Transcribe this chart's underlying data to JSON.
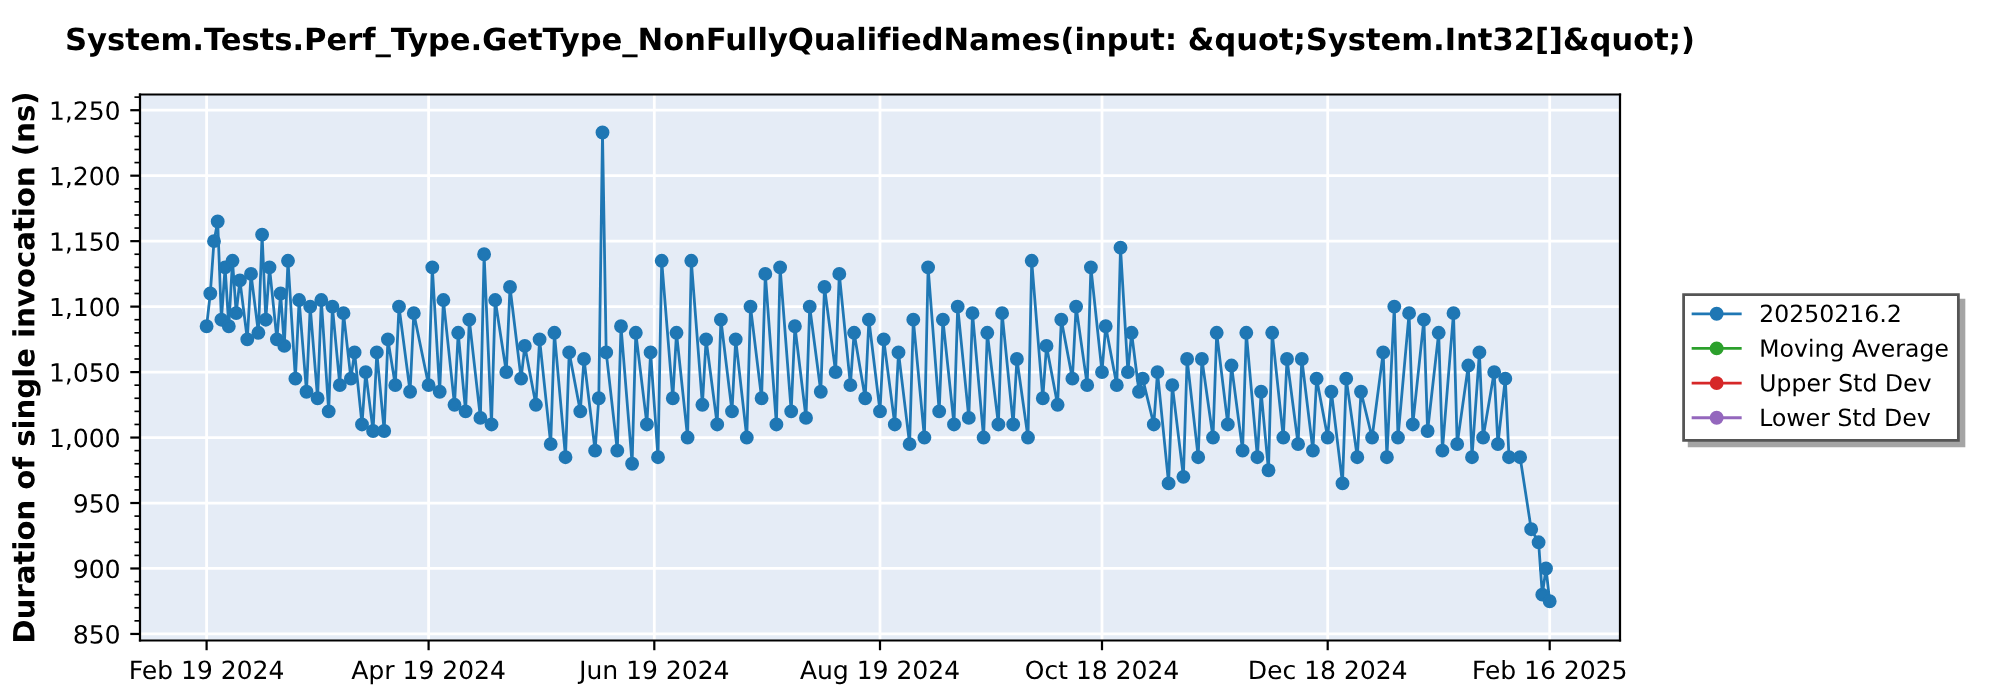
{
  "chart_data": {
    "type": "line",
    "title": "System.Tests.Perf_Type.GetType_NonFullyQualifiedNames(input: &quot;System.Int32[]&quot;)",
    "ylabel": "Duration of single invocation (ns)",
    "xlim": [
      "2024-02-01",
      "2025-03-07"
    ],
    "xticks": [
      {
        "value": "2024-02-19",
        "label": "Feb 19 2024"
      },
      {
        "value": "2024-04-19",
        "label": "Apr 19 2024"
      },
      {
        "value": "2024-06-19",
        "label": "Jun 19 2024"
      },
      {
        "value": "2024-08-19",
        "label": "Aug 19 2024"
      },
      {
        "value": "2024-10-18",
        "label": "Oct 18 2024"
      },
      {
        "value": "2024-12-18",
        "label": "Dec 18 2024"
      },
      {
        "value": "2025-02-16",
        "label": "Feb 16 2025"
      }
    ],
    "ylim": [
      845,
      1262
    ],
    "yticks": [
      {
        "value": 850,
        "label": "850"
      },
      {
        "value": 900,
        "label": "900"
      },
      {
        "value": 950,
        "label": "950"
      },
      {
        "value": 1000,
        "label": "1,000"
      },
      {
        "value": 1050,
        "label": "1,050"
      },
      {
        "value": 1100,
        "label": "1,100"
      },
      {
        "value": 1150,
        "label": "1,150"
      },
      {
        "value": 1200,
        "label": "1,200"
      },
      {
        "value": 1250,
        "label": "1,250"
      }
    ],
    "grid": true,
    "legend": "right",
    "marker": "circle",
    "line_style": "solid",
    "series": [
      {
        "name": "20250216.2",
        "color": "#1f77b4",
        "x": [
          "2024-02-19",
          "2024-02-20",
          "2024-02-21",
          "2024-02-22",
          "2024-02-23",
          "2024-02-24",
          "2024-02-25",
          "2024-02-26",
          "2024-02-27",
          "2024-02-28",
          "2024-03-01",
          "2024-03-02",
          "2024-03-04",
          "2024-03-05",
          "2024-03-06",
          "2024-03-07",
          "2024-03-09",
          "2024-03-10",
          "2024-03-11",
          "2024-03-12",
          "2024-03-14",
          "2024-03-15",
          "2024-03-17",
          "2024-03-18",
          "2024-03-20",
          "2024-03-21",
          "2024-03-23",
          "2024-03-24",
          "2024-03-26",
          "2024-03-27",
          "2024-03-29",
          "2024-03-30",
          "2024-04-01",
          "2024-04-02",
          "2024-04-04",
          "2024-04-05",
          "2024-04-07",
          "2024-04-08",
          "2024-04-10",
          "2024-04-11",
          "2024-04-14",
          "2024-04-15",
          "2024-04-19",
          "2024-04-20",
          "2024-04-22",
          "2024-04-23",
          "2024-04-26",
          "2024-04-27",
          "2024-04-29",
          "2024-04-30",
          "2024-05-03",
          "2024-05-04",
          "2024-05-06",
          "2024-05-07",
          "2024-05-10",
          "2024-05-11",
          "2024-05-14",
          "2024-05-15",
          "2024-05-18",
          "2024-05-19",
          "2024-05-22",
          "2024-05-23",
          "2024-05-26",
          "2024-05-27",
          "2024-05-30",
          "2024-05-31",
          "2024-06-03",
          "2024-06-04",
          "2024-06-05",
          "2024-06-06",
          "2024-06-09",
          "2024-06-10",
          "2024-06-13",
          "2024-06-14",
          "2024-06-17",
          "2024-06-18",
          "2024-06-20",
          "2024-06-21",
          "2024-06-24",
          "2024-06-25",
          "2024-06-28",
          "2024-06-29",
          "2024-07-02",
          "2024-07-03",
          "2024-07-06",
          "2024-07-07",
          "2024-07-10",
          "2024-07-11",
          "2024-07-14",
          "2024-07-15",
          "2024-07-18",
          "2024-07-19",
          "2024-07-22",
          "2024-07-23",
          "2024-07-26",
          "2024-07-27",
          "2024-07-30",
          "2024-07-31",
          "2024-08-03",
          "2024-08-04",
          "2024-08-07",
          "2024-08-08",
          "2024-08-11",
          "2024-08-12",
          "2024-08-15",
          "2024-08-16",
          "2024-08-19",
          "2024-08-20",
          "2024-08-23",
          "2024-08-24",
          "2024-08-27",
          "2024-08-28",
          "2024-08-31",
          "2024-09-01",
          "2024-09-04",
          "2024-09-05",
          "2024-09-08",
          "2024-09-09",
          "2024-09-12",
          "2024-09-13",
          "2024-09-16",
          "2024-09-17",
          "2024-09-20",
          "2024-09-21",
          "2024-09-24",
          "2024-09-25",
          "2024-09-28",
          "2024-09-29",
          "2024-10-02",
          "2024-10-03",
          "2024-10-06",
          "2024-10-07",
          "2024-10-10",
          "2024-10-11",
          "2024-10-14",
          "2024-10-15",
          "2024-10-18",
          "2024-10-19",
          "2024-10-22",
          "2024-10-23",
          "2024-10-25",
          "2024-10-26",
          "2024-10-28",
          "2024-10-29",
          "2024-11-01",
          "2024-11-02",
          "2024-11-05",
          "2024-11-06",
          "2024-11-09",
          "2024-11-10",
          "2024-11-13",
          "2024-11-14",
          "2024-11-17",
          "2024-11-18",
          "2024-11-21",
          "2024-11-22",
          "2024-11-25",
          "2024-11-26",
          "2024-11-29",
          "2024-11-30",
          "2024-12-02",
          "2024-12-03",
          "2024-12-06",
          "2024-12-07",
          "2024-12-10",
          "2024-12-11",
          "2024-12-14",
          "2024-12-15",
          "2024-12-18",
          "2024-12-19",
          "2024-12-22",
          "2024-12-23",
          "2024-12-26",
          "2024-12-27",
          "2024-12-30",
          "2025-01-02",
          "2025-01-03",
          "2025-01-05",
          "2025-01-06",
          "2025-01-09",
          "2025-01-10",
          "2025-01-13",
          "2025-01-14",
          "2025-01-17",
          "2025-01-18",
          "2025-01-21",
          "2025-01-22",
          "2025-01-25",
          "2025-01-26",
          "2025-01-28",
          "2025-01-29",
          "2025-02-01",
          "2025-02-02",
          "2025-02-04",
          "2025-02-05",
          "2025-02-08",
          "2025-02-11",
          "2025-02-13",
          "2025-02-14",
          "2025-02-15",
          "2025-02-16"
        ],
        "values": [
          1085,
          1110,
          1150,
          1165,
          1090,
          1130,
          1085,
          1135,
          1095,
          1120,
          1075,
          1125,
          1080,
          1155,
          1090,
          1130,
          1075,
          1110,
          1070,
          1135,
          1045,
          1105,
          1035,
          1100,
          1030,
          1105,
          1020,
          1100,
          1040,
          1095,
          1045,
          1065,
          1010,
          1050,
          1005,
          1065,
          1005,
          1075,
          1040,
          1100,
          1035,
          1095,
          1040,
          1130,
          1035,
          1105,
          1025,
          1080,
          1020,
          1090,
          1015,
          1140,
          1010,
          1105,
          1050,
          1115,
          1045,
          1070,
          1025,
          1075,
          995,
          1080,
          985,
          1065,
          1020,
          1060,
          990,
          1030,
          1233,
          1065,
          990,
          1085,
          980,
          1080,
          1010,
          1065,
          985,
          1135,
          1030,
          1080,
          1000,
          1135,
          1025,
          1075,
          1010,
          1090,
          1020,
          1075,
          1000,
          1100,
          1030,
          1125,
          1010,
          1130,
          1020,
          1085,
          1015,
          1100,
          1035,
          1115,
          1050,
          1125,
          1040,
          1080,
          1030,
          1090,
          1020,
          1075,
          1010,
          1065,
          995,
          1090,
          1000,
          1130,
          1020,
          1090,
          1010,
          1100,
          1015,
          1095,
          1000,
          1080,
          1010,
          1095,
          1010,
          1060,
          1000,
          1135,
          1030,
          1070,
          1025,
          1090,
          1045,
          1100,
          1040,
          1130,
          1050,
          1085,
          1040,
          1145,
          1050,
          1080,
          1035,
          1045,
          1010,
          1050,
          965,
          1040,
          970,
          1060,
          985,
          1060,
          1000,
          1080,
          1010,
          1055,
          990,
          1080,
          985,
          1035,
          975,
          1080,
          1000,
          1060,
          995,
          1060,
          990,
          1045,
          1000,
          1035,
          965,
          1045,
          985,
          1035,
          1000,
          1065,
          985,
          1100,
          1000,
          1095,
          1010,
          1090,
          1005,
          1080,
          990,
          1095,
          995,
          1055,
          985,
          1065,
          1000,
          1050,
          995,
          1045,
          985,
          985,
          930,
          920,
          880,
          900,
          875
        ]
      },
      {
        "name": "Moving Average",
        "color": "#2ca02c"
      },
      {
        "name": "Upper Std Dev",
        "color": "#d62728"
      },
      {
        "name": "Lower Std Dev",
        "color": "#9467bd"
      }
    ]
  }
}
